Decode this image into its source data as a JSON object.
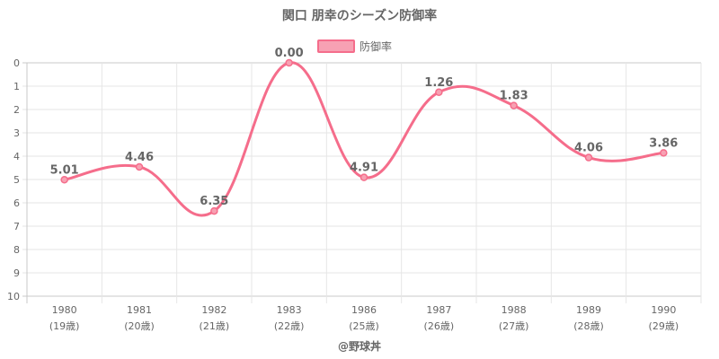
{
  "chart_data": {
    "type": "line",
    "title": "関口 朋幸のシーズン防御率",
    "legend": {
      "label": "防御率",
      "position": "top"
    },
    "credit": "@野球丼",
    "categories": [
      "1980",
      "1981",
      "1982",
      "1983",
      "1986",
      "1987",
      "1988",
      "1989",
      "1990"
    ],
    "sublabels": [
      "(19歳)",
      "(20歳)",
      "(21歳)",
      "(22歳)",
      "(25歳)",
      "(26歳)",
      "(27歳)",
      "(28歳)",
      "(29歳)"
    ],
    "values": [
      5.01,
      4.46,
      6.35,
      0.0,
      4.91,
      1.26,
      1.83,
      4.06,
      3.86
    ],
    "value_labels": [
      "5.01",
      "4.46",
      "6.35",
      "0.00",
      "4.91",
      "1.26",
      "1.83",
      "4.06",
      "3.86"
    ],
    "y_ticks": [
      "0",
      "1",
      "2",
      "3",
      "4",
      "5",
      "6",
      "7",
      "8",
      "9",
      "10"
    ],
    "ylim": [
      0,
      10
    ],
    "y_reversed": true,
    "grid": true,
    "colors": {
      "line": "#f56d8b",
      "fill": "#f7a1b3",
      "text": "#666666",
      "grid": "#e6e6e6",
      "axis": "#c8c8c8"
    }
  }
}
